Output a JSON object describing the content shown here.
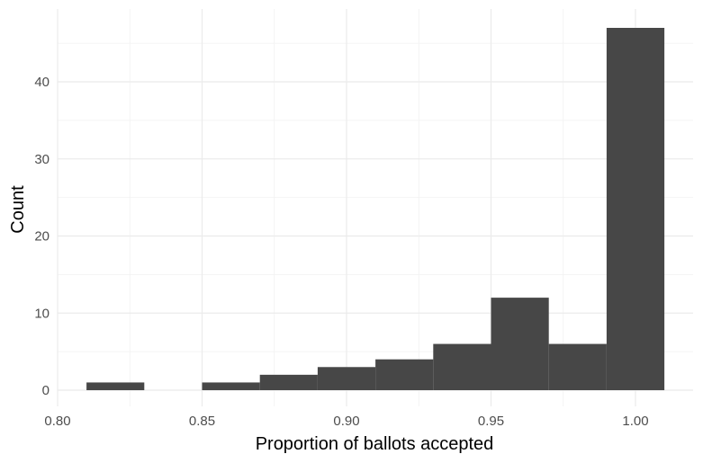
{
  "chart_data": {
    "type": "bar",
    "subtype": "histogram",
    "xlabel": "Proportion of ballots accepted",
    "ylabel": "Count",
    "xlim": [
      0.8,
      1.02
    ],
    "ylim": [
      0,
      47
    ],
    "x_ticks": [
      0.8,
      0.85,
      0.9,
      0.95,
      1.0
    ],
    "x_tick_labels": [
      "0.80",
      "0.85",
      "0.90",
      "0.95",
      "1.00"
    ],
    "y_ticks": [
      0,
      10,
      20,
      30,
      40
    ],
    "y_tick_labels": [
      "0",
      "10",
      "20",
      "30",
      "40"
    ],
    "bin_width": 0.02,
    "bins": [
      {
        "x0": 0.81,
        "x1": 0.83,
        "count": 1
      },
      {
        "x0": 0.83,
        "x1": 0.85,
        "count": 0
      },
      {
        "x0": 0.85,
        "x1": 0.87,
        "count": 1
      },
      {
        "x0": 0.87,
        "x1": 0.89,
        "count": 2
      },
      {
        "x0": 0.89,
        "x1": 0.91,
        "count": 3
      },
      {
        "x0": 0.91,
        "x1": 0.93,
        "count": 4
      },
      {
        "x0": 0.93,
        "x1": 0.95,
        "count": 6
      },
      {
        "x0": 0.95,
        "x1": 0.97,
        "count": 12
      },
      {
        "x0": 0.97,
        "x1": 0.99,
        "count": 6
      },
      {
        "x0": 0.99,
        "x1": 1.01,
        "count": 47
      }
    ],
    "bar_color": "#474747",
    "background": "#ffffff",
    "grid": true,
    "legend": "none"
  }
}
